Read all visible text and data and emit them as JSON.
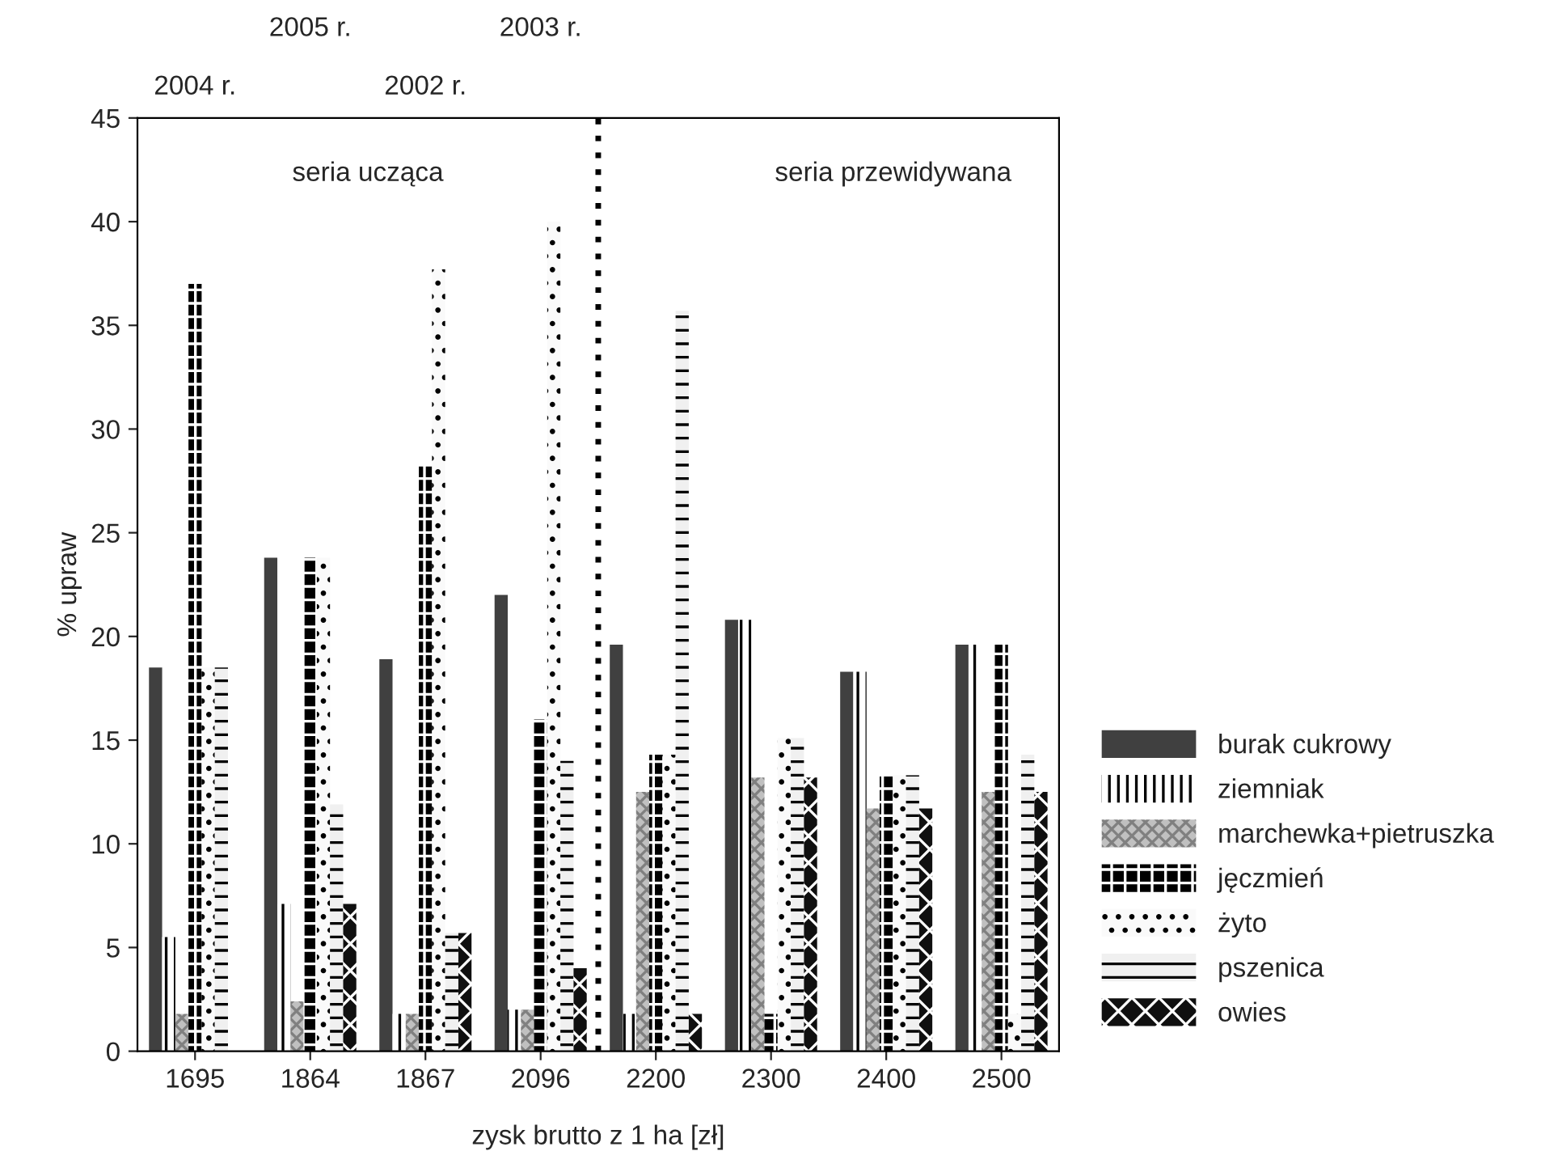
{
  "chart_data": {
    "type": "bar",
    "xlabel": "zysk brutto z 1 ha [zł]",
    "ylabel": "% upraw",
    "categories": [
      "1695",
      "1864",
      "1867",
      "2096",
      "2200",
      "2300",
      "2400",
      "2500"
    ],
    "series": [
      {
        "name": "burak cukrowy",
        "color": "#404040",
        "values": [
          18.5,
          23.8,
          18.9,
          22.0,
          19.6,
          20.8,
          18.3,
          19.6
        ]
      },
      {
        "name": "ziemniak",
        "color": "#ffffff",
        "values": [
          5.5,
          7.1,
          1.8,
          2.0,
          1.8,
          20.8,
          18.3,
          19.6
        ]
      },
      {
        "name": "marchewka+pietruszka",
        "color": "#c0c0c0",
        "values": [
          1.8,
          2.4,
          1.8,
          2.0,
          12.5,
          13.2,
          11.7,
          12.5
        ]
      },
      {
        "name": "jęczmień",
        "color": "#000000",
        "values": [
          37.0,
          23.8,
          28.3,
          16.0,
          14.3,
          1.8,
          13.3,
          19.6
        ]
      },
      {
        "name": "żyto",
        "color": "#fafafa",
        "values": [
          18.5,
          23.8,
          37.7,
          40.0,
          14.3,
          15.1,
          13.3,
          1.8
        ]
      },
      {
        "name": "pszenica",
        "color": "#f0f0f0",
        "values": [
          18.5,
          11.9,
          5.7,
          14.0,
          35.7,
          15.1,
          13.3,
          14.3
        ]
      },
      {
        "name": "owies",
        "color": "#101010",
        "values": [
          0,
          7.1,
          5.7,
          4.0,
          1.8,
          13.2,
          11.7,
          12.5
        ]
      }
    ],
    "ylim": [
      0,
      45
    ],
    "yticks": [
      0,
      5,
      10,
      15,
      20,
      25,
      30,
      35,
      40,
      45
    ],
    "annotations": [
      "seria ucząca",
      "seria przewidywana",
      "2004 r.",
      "2005 r.",
      "2002 r.",
      "2003 r."
    ],
    "legend": "right",
    "grid": false
  }
}
